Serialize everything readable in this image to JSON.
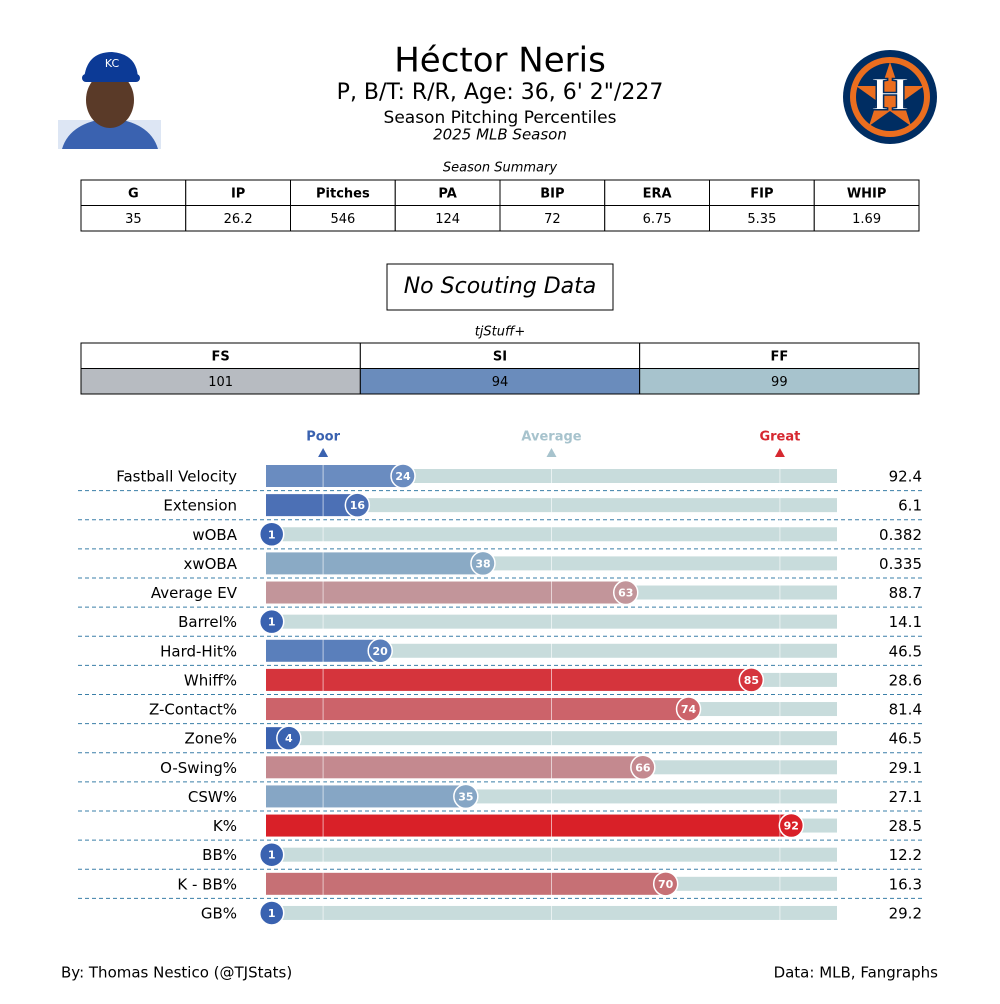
{
  "header": {
    "title": "Héctor Neris",
    "subtitle": "P, B/T: R/R, Age: 36, 6' 2\"/227",
    "line3": "Season Pitching Percentiles",
    "line4": "2025 MLB Season"
  },
  "season_summary": {
    "caption": "Season Summary",
    "columns": [
      "G",
      "IP",
      "Pitches",
      "PA",
      "BIP",
      "ERA",
      "FIP",
      "WHIP"
    ],
    "values": [
      35,
      26.2,
      546,
      124,
      72,
      6.75,
      5.35,
      1.69
    ]
  },
  "scouting": {
    "text": "No Scouting Data"
  },
  "tjstuff": {
    "caption": "tjStuff+",
    "columns": [
      "FS",
      "SI",
      "FF"
    ],
    "values": [
      101,
      94,
      99
    ],
    "colors": [
      "#b7bbc1",
      "#6a8cbc",
      "#a7c3cd"
    ]
  },
  "chart_data": {
    "type": "bar",
    "orientation": "horizontal",
    "categories": [
      "Fastball Velocity",
      "Extension",
      "wOBA",
      "xwOBA",
      "Average EV",
      "Barrel%",
      "Hard-Hit%",
      "Whiff%",
      "Z-Contact%",
      "Zone%",
      "O-Swing%",
      "CSW%",
      "K%",
      "BB%",
      "K - BB%",
      "GB%"
    ],
    "values": [
      24,
      16,
      1,
      38,
      63,
      1,
      20,
      85,
      74,
      4,
      66,
      35,
      92,
      1,
      70,
      1
    ],
    "colors": [
      "#6a8cc0",
      "#4c70b5",
      "#3a62b0",
      "#8aaac5",
      "#c2959a",
      "#3a62b0",
      "#5a7fbb",
      "#d5343c",
      "#cc636a",
      "#3a62b0",
      "#c4898f",
      "#86a6c5",
      "#d92028",
      "#3a62b0",
      "#c67075",
      "#3a62b0"
    ],
    "stats": [
      "92.4",
      "6.1",
      "0.382",
      "0.335",
      "88.7",
      "14.1",
      "46.5",
      "28.6",
      "81.4",
      "46.5",
      "29.1",
      "27.1",
      "28.5",
      "12.2",
      "16.3",
      "29.2"
    ],
    "xlim": [
      0,
      100
    ],
    "xticks": [
      {
        "value": 10,
        "label": "Poor"
      },
      {
        "value": 50,
        "label": "Average"
      },
      {
        "value": 90,
        "label": "Great"
      }
    ],
    "tick_colors": [
      "#3a62b0",
      "#a7c3cd",
      "#d62830"
    ],
    "track_color": "#c8dcdc",
    "grid": true
  },
  "footer": {
    "left": "By: Thomas Nestico (@TJStats)",
    "right": "Data: MLB, Fangraphs"
  }
}
